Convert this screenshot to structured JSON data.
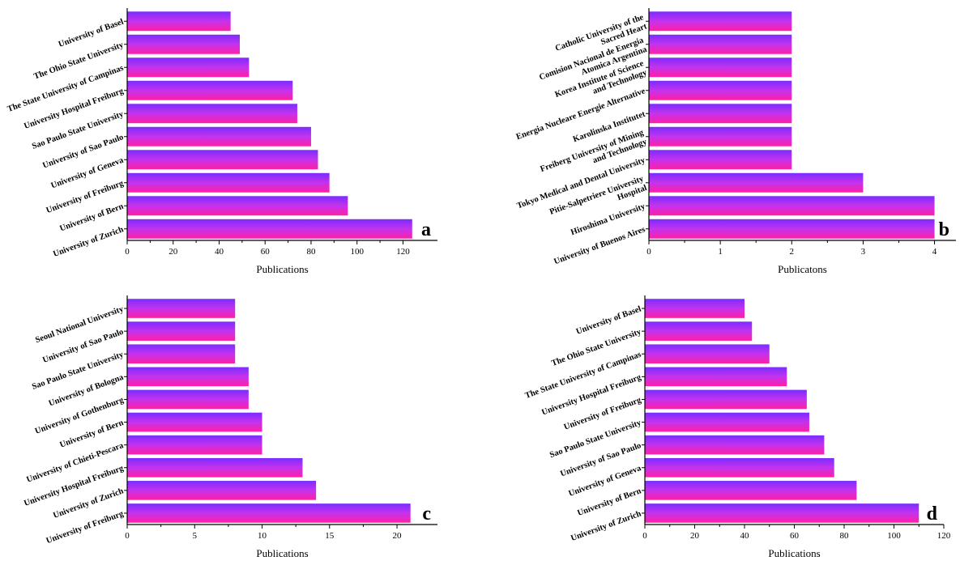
{
  "colors": {
    "bar_top": "#7b2cff",
    "bar_mid": "#c433ee",
    "bar_bottom": "#ff1fa6"
  },
  "chart_data": [
    {
      "type": "bar",
      "orientation": "horizontal",
      "panel_label": "a",
      "xlabel": "Publications",
      "xlim": [
        0,
        135
      ],
      "xticks": [
        0,
        20,
        40,
        60,
        80,
        100,
        120
      ],
      "categories": [
        "University of Basel",
        "The Ohio State University",
        "The State University of Campinas",
        "University Hospital Freiburg",
        "Sao Paulo State University",
        "University of Sao Paulo",
        "University of Geneva",
        "University of Freiburg",
        "University of Bern",
        "University of Zurich"
      ],
      "values": [
        45,
        49,
        53,
        72,
        74,
        80,
        83,
        88,
        96,
        124
      ]
    },
    {
      "type": "bar",
      "orientation": "horizontal",
      "panel_label": "b",
      "xlabel": "Publicatons",
      "xlim": [
        0,
        4.3
      ],
      "xticks": [
        0,
        1,
        2,
        3,
        4
      ],
      "categories": [
        "Catholic University of the Sacred Heart",
        "Comision Nacional de Energia Atomica Argentina",
        "Korea Institute of Science and Technology",
        "Energia Nucleare Energie Alternative",
        "Karolinska Institutet",
        "Freiberg University of Mining and Technology",
        "Tokyo Medical and Dental University",
        "Pitie-Salpetriere University Hospital",
        "Hiroshima University",
        "University of Buenos Aires"
      ],
      "values": [
        2,
        2,
        2,
        2,
        2,
        2,
        2,
        3,
        4,
        4
      ]
    },
    {
      "type": "bar",
      "orientation": "horizontal",
      "panel_label": "c",
      "xlabel": "Publications",
      "xlim": [
        0,
        23
      ],
      "xticks": [
        0,
        5,
        10,
        15,
        20
      ],
      "categories": [
        "Seoul National University",
        "University of Sao Paulo",
        "Sao Paulo State University",
        "University of Bologna",
        "University of Gothenburg",
        "University of Bern",
        "University of Chieti-Pescara",
        "University Hospital Freiburg",
        "University of Zurich",
        "University of Freiburg"
      ],
      "values": [
        8,
        8,
        8,
        9,
        9,
        10,
        10,
        13,
        14,
        21
      ]
    },
    {
      "type": "bar",
      "orientation": "horizontal",
      "panel_label": "d",
      "xlabel": "Publications",
      "xlim": [
        0,
        120
      ],
      "xticks": [
        0,
        20,
        40,
        60,
        80,
        100,
        120
      ],
      "categories": [
        "University of Basel",
        "The Ohio State University",
        "The State University of Campinas",
        "University Hospital Freiburg",
        "University of Freiburg",
        "Sao Paulo State University",
        "University of Sao Paulo",
        "University of Geneva",
        "University of Bern",
        "University of Zurich"
      ],
      "values": [
        40,
        43,
        50,
        57,
        65,
        66,
        72,
        76,
        85,
        110
      ]
    }
  ]
}
